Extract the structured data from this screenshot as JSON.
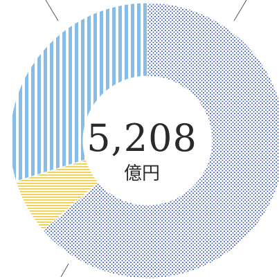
{
  "chart_data": {
    "type": "pie",
    "center": {
      "value": "5,208",
      "unit": "億円"
    },
    "slices": [
      {
        "value": 0.637,
        "color": "#3f5fb5",
        "pattern": "dots"
      },
      {
        "value": 0.065,
        "color": "#e8c74a",
        "pattern": "horizontal-lines"
      },
      {
        "value": 0.298,
        "color": "#86bde8",
        "pattern": "vertical-stripes"
      }
    ]
  }
}
